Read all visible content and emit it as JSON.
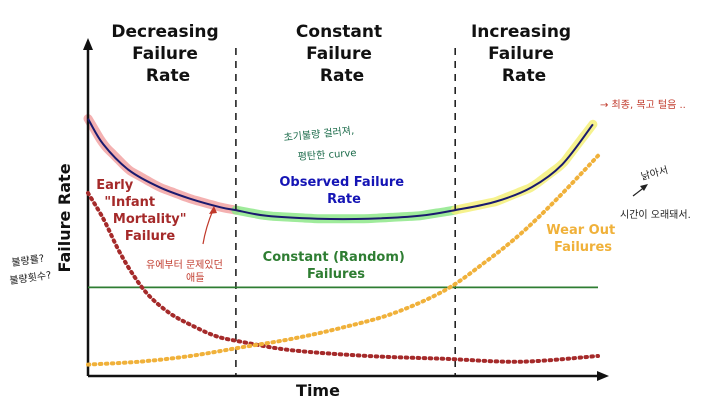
{
  "chart_data": {
    "type": "line",
    "title": "",
    "xlabel": "Time",
    "ylabel": "Failure Rate",
    "xlim": [
      0,
      100
    ],
    "ylim": [
      0,
      100
    ],
    "grid": false,
    "phase_boundaries": [
      29,
      72
    ],
    "phases": [
      {
        "label_lines": [
          "Decreasing",
          "Failure",
          "Rate"
        ]
      },
      {
        "label_lines": [
          "Constant",
          "Failure",
          "Rate"
        ]
      },
      {
        "label_lines": [
          "Increasing",
          "Failure",
          "Rate"
        ]
      }
    ],
    "series": [
      {
        "name": "Observed Failure Rate",
        "label_lines": [
          "Observed Failure",
          "Rate"
        ],
        "color": "#1a1a6e",
        "style": "solid",
        "x": [
          0,
          3,
          8,
          14,
          20,
          26,
          29,
          35,
          45,
          55,
          65,
          72,
          80,
          87,
          93,
          99
        ],
        "y": [
          90,
          81,
          72,
          66,
          62,
          59,
          58,
          56,
          55,
          55,
          56,
          58,
          61,
          66,
          74,
          88
        ]
      },
      {
        "name": "Early \"Infant Mortality\" Failure",
        "label_lines": [
          "Early",
          "\"Infant",
          "Mortality\"",
          "Failure"
        ],
        "color": "#a52a2a",
        "style": "dotted",
        "x": [
          0,
          3,
          6,
          9,
          12,
          16,
          20,
          25,
          30,
          40,
          55,
          70,
          85,
          100
        ],
        "y": [
          64,
          55,
          44,
          35,
          28,
          22,
          18,
          14,
          12,
          9,
          7,
          6,
          5,
          7
        ]
      },
      {
        "name": "Constant (Random) Failures",
        "label_lines": [
          "Constant (Random)",
          "Failures"
        ],
        "color": "#2e7d32",
        "style": "solid",
        "x": [
          0,
          100
        ],
        "y": [
          31,
          31
        ]
      },
      {
        "name": "Wear Out Failures",
        "label_lines": [
          "Wear Out",
          "Failures"
        ],
        "color": "#f0b13a",
        "style": "dotted",
        "x": [
          0,
          10,
          20,
          30,
          40,
          50,
          60,
          70,
          78,
          85,
          92,
          100
        ],
        "y": [
          4,
          5,
          7,
          10,
          13,
          17,
          22,
          30,
          40,
          50,
          62,
          77
        ]
      }
    ],
    "highlights": [
      {
        "name": "decreasing",
        "color": "#f2a3a3",
        "x_from": 0,
        "x_to": 29
      },
      {
        "name": "constant",
        "color": "#8ee88a",
        "x_from": 29,
        "x_to": 72
      },
      {
        "name": "increasing",
        "color": "#f5f07a",
        "x_from": 72,
        "x_to": 99
      }
    ],
    "annotations": {
      "red_top_right": "→ 최종, 목고 털음 ..",
      "green_middle_line1": "초기불량 걸러져,",
      "green_middle_line2": "평탄한 curve",
      "red_infant_line1": "유에부터 문제있던",
      "red_infant_line2": "애들",
      "black_left_line1": "불량률?",
      "black_left_line2": "불량횟수?",
      "black_right_line1": "낡아서",
      "black_right_line2": "시간이 오래돼서."
    }
  }
}
